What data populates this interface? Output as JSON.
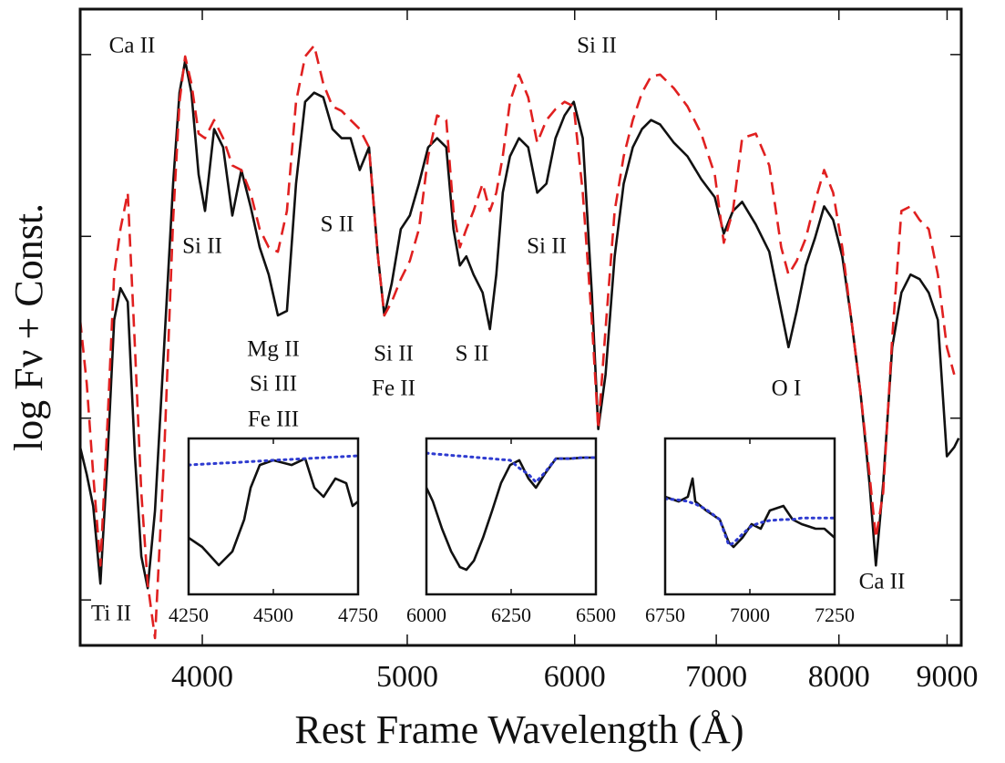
{
  "chart_data": [
    {
      "type": "line",
      "xlabel": "Rest Frame Wavelength (Å)",
      "ylabel": "log Fν + Const.",
      "log_x": true,
      "xlim": [
        3502,
        9140
      ],
      "xticks": [
        4000,
        5000,
        6000,
        7000,
        8000,
        9000
      ],
      "ylim": [
        0,
        3.5
      ],
      "yticks": [
        0.25,
        1.25,
        2.25,
        3.25
      ],
      "annotations": [
        "Ca II",
        "Si II",
        "Si II",
        "S II",
        "Si II",
        "Mg II",
        "Si III",
        "Fe III",
        "Si II",
        "Fe II",
        "S II",
        "O I",
        "Ti II",
        "Ca II"
      ],
      "x": [
        3502,
        3527,
        3552,
        3580,
        3608,
        3634,
        3659,
        3688,
        3717,
        3743,
        3769,
        3799,
        3837,
        3875,
        3902,
        3926,
        3953,
        3984,
        4012,
        4052,
        4092,
        4133,
        4174,
        4216,
        4258,
        4300,
        4343,
        4386,
        4430,
        4474,
        4518,
        4563,
        4609,
        4655,
        4701,
        4748,
        4796,
        4843,
        4877,
        4916,
        4965,
        5014,
        5064,
        5115,
        5165,
        5217,
        5258,
        5295,
        5332,
        5374,
        5428,
        5471,
        5509,
        5548,
        5592,
        5647,
        5704,
        5760,
        5818,
        5876,
        5934,
        5994,
        6053,
        6113,
        6156,
        6205,
        6267,
        6329,
        6392,
        6456,
        6520,
        6585,
        6684,
        6784,
        6886,
        6989,
        7058,
        7128,
        7200,
        7308,
        7416,
        7513,
        7573,
        7641,
        7717,
        7794,
        7872,
        7950,
        8029,
        8109,
        8190,
        8271,
        8329,
        8395,
        8478,
        8563,
        8649,
        8735,
        8822,
        8910,
        8998,
        9070,
        9115
      ],
      "series": [
        {
          "color": "#111111",
          "style": "solid",
          "values": [
            1.09,
            0.94,
            0.765,
            0.34,
            1.04,
            1.79,
            1.965,
            1.89,
            1.04,
            0.49,
            0.315,
            0.74,
            1.64,
            2.54,
            3.04,
            3.215,
            3.04,
            2.59,
            2.39,
            2.84,
            2.74,
            2.365,
            2.615,
            2.415,
            2.19,
            2.04,
            1.815,
            1.84,
            2.54,
            2.99,
            3.04,
            3.015,
            2.84,
            2.79,
            2.79,
            2.615,
            2.74,
            2.14,
            1.815,
            1.99,
            2.29,
            2.365,
            2.54,
            2.74,
            2.79,
            2.74,
            2.29,
            2.09,
            2.14,
            2.04,
            1.94,
            1.74,
            2.04,
            2.49,
            2.69,
            2.79,
            2.74,
            2.49,
            2.54,
            2.79,
            2.915,
            2.99,
            2.79,
            1.94,
            1.19,
            1.49,
            2.14,
            2.54,
            2.74,
            2.84,
            2.89,
            2.865,
            2.765,
            2.69,
            2.565,
            2.465,
            2.265,
            2.39,
            2.44,
            2.315,
            2.165,
            1.84,
            1.64,
            1.84,
            2.09,
            2.24,
            2.415,
            2.34,
            2.14,
            1.79,
            1.39,
            0.89,
            0.44,
            0.89,
            1.64,
            1.94,
            2.04,
            2.015,
            1.94,
            1.79,
            1.04,
            1.09,
            1.14
          ]
        },
        {
          "color": "#e02020",
          "style": "dashed",
          "values": [
            1.79,
            1.44,
            0.94,
            0.44,
            1.24,
            2.04,
            2.29,
            2.49,
            1.64,
            0.84,
            0.34,
            0.04,
            1.04,
            2.34,
            2.99,
            3.24,
            3.09,
            2.815,
            2.79,
            2.89,
            2.79,
            2.64,
            2.615,
            2.49,
            2.29,
            2.19,
            2.165,
            2.39,
            2.99,
            3.24,
            3.3,
            3.09,
            2.965,
            2.94,
            2.89,
            2.84,
            2.74,
            2.14,
            1.815,
            1.89,
            2.015,
            2.115,
            2.29,
            2.69,
            2.915,
            2.89,
            2.39,
            2.19,
            2.29,
            2.39,
            2.54,
            2.39,
            2.49,
            2.69,
            2.99,
            3.14,
            3.015,
            2.765,
            2.89,
            2.95,
            2.99,
            2.965,
            2.49,
            1.79,
            1.19,
            1.74,
            2.39,
            2.69,
            2.89,
            3.04,
            3.13,
            3.14,
            3.065,
            2.965,
            2.815,
            2.59,
            2.215,
            2.39,
            2.79,
            2.815,
            2.64,
            2.19,
            2.04,
            2.115,
            2.24,
            2.44,
            2.615,
            2.49,
            2.19,
            1.79,
            1.39,
            0.94,
            0.59,
            0.84,
            1.69,
            2.39,
            2.415,
            2.34,
            2.29,
            2.04,
            1.64,
            1.49,
            null
          ]
        }
      ]
    },
    {
      "type": "line",
      "xlim": [
        4250,
        4750
      ],
      "xticks": [
        4250,
        4500,
        4750
      ],
      "ylim": [
        0,
        1
      ],
      "x": [
        4250,
        4290,
        4339,
        4379,
        4414,
        4433,
        4460,
        4500,
        4554,
        4594,
        4621,
        4648,
        4683,
        4715,
        4734,
        4750
      ],
      "series": [
        {
          "color": "#111111",
          "style": "solid",
          "values": [
            0.363,
            0.304,
            0.187,
            0.275,
            0.48,
            0.684,
            0.83,
            0.86,
            0.83,
            0.871,
            0.684,
            0.626,
            0.743,
            0.713,
            0.567,
            0.596
          ]
        },
        {
          "color": "#2e3bd0",
          "style": "dotted",
          "values": [
            0.83,
            0.835,
            0.841,
            0.845,
            0.849,
            0.852,
            0.855,
            0.86,
            0.866,
            0.871,
            0.874,
            0.877,
            0.881,
            0.885,
            0.887,
            0.889
          ]
        }
      ]
    },
    {
      "type": "line",
      "xlim": [
        6000,
        6500
      ],
      "xticks": [
        6000,
        6250,
        6500
      ],
      "ylim": [
        0,
        1
      ],
      "x": [
        6000,
        6019,
        6046,
        6073,
        6099,
        6118,
        6140,
        6167,
        6194,
        6220,
        6247,
        6274,
        6301,
        6323,
        6349,
        6382,
        6422,
        6462,
        6500
      ],
      "series": [
        {
          "color": "#111111",
          "style": "solid",
          "values": [
            0.684,
            0.596,
            0.421,
            0.275,
            0.175,
            0.158,
            0.216,
            0.363,
            0.538,
            0.713,
            0.83,
            0.86,
            0.743,
            0.684,
            0.772,
            0.871,
            0.871,
            0.877,
            0.877
          ]
        },
        {
          "color": "#2e3bd0",
          "style": "dotted",
          "values": [
            0.906,
            0.902,
            0.897,
            0.892,
            0.887,
            0.884,
            0.88,
            0.875,
            0.87,
            0.865,
            0.86,
            0.81,
            0.77,
            0.72,
            0.78,
            0.871,
            0.871,
            0.877,
            0.877
          ]
        }
      ]
    },
    {
      "type": "line",
      "xlim": [
        6750,
        7250
      ],
      "xticks": [
        6750,
        7000,
        7250
      ],
      "ylim": [
        0,
        1
      ],
      "x": [
        6750,
        6790,
        6817,
        6831,
        6839,
        6871,
        6911,
        6938,
        6952,
        6978,
        7005,
        7032,
        7059,
        7099,
        7126,
        7153,
        7194,
        7220,
        7250
      ],
      "series": [
        {
          "color": "#111111",
          "style": "solid",
          "values": [
            0.626,
            0.596,
            0.626,
            0.743,
            0.596,
            0.538,
            0.48,
            0.333,
            0.304,
            0.363,
            0.45,
            0.421,
            0.538,
            0.567,
            0.48,
            0.45,
            0.421,
            0.421,
            0.363
          ]
        },
        {
          "color": "#2e3bd0",
          "style": "dotted",
          "values": [
            0.614,
            0.605,
            0.597,
            0.585,
            0.58,
            0.545,
            0.48,
            0.316,
            0.33,
            0.386,
            0.44,
            0.46,
            0.474,
            0.48,
            0.48,
            0.49,
            0.49,
            0.49,
            0.49
          ]
        }
      ]
    }
  ]
}
